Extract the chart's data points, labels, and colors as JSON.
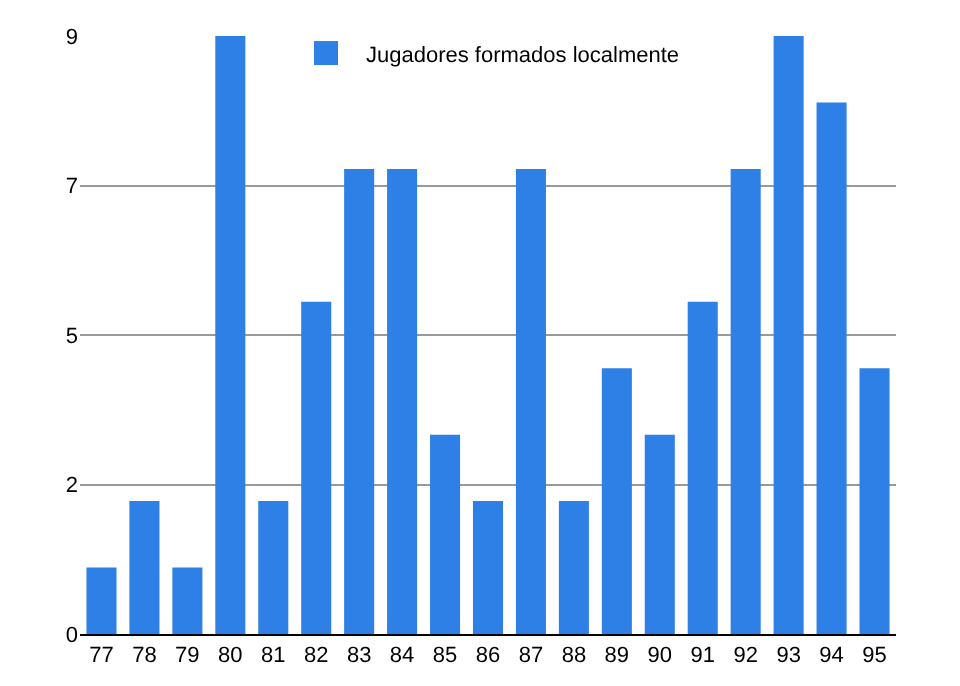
{
  "chart_data": {
    "type": "bar",
    "categories": [
      "77",
      "78",
      "79",
      "80",
      "81",
      "82",
      "83",
      "84",
      "85",
      "86",
      "87",
      "88",
      "89",
      "90",
      "91",
      "92",
      "93",
      "94",
      "95"
    ],
    "series": [
      {
        "name": "Jugadores formados localmente",
        "color": "#2f80e6",
        "values": [
          1,
          2,
          1,
          9,
          2,
          5,
          7,
          7,
          3,
          2,
          7,
          2,
          4,
          3,
          5,
          7,
          9,
          8,
          4
        ]
      }
    ],
    "ylim": [
      0,
      9
    ],
    "yticks": [
      0,
      {
        "value": 2.25,
        "label": "2"
      },
      {
        "value": 4.5,
        "label": "5"
      },
      {
        "value": 6.75,
        "label": "7"
      },
      9
    ],
    "grid": "y",
    "legend": "top"
  }
}
